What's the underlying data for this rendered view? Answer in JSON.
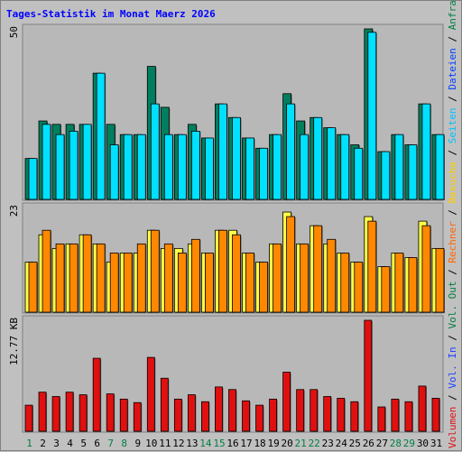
{
  "chart_data": {
    "type": "bar",
    "title": "Tages-Statistik im Monat Maerz 2026",
    "categories": [
      "1",
      "2",
      "3",
      "4",
      "5",
      "6",
      "7",
      "8",
      "9",
      "10",
      "11",
      "12",
      "13",
      "14",
      "15",
      "16",
      "17",
      "18",
      "19",
      "20",
      "21",
      "22",
      "23",
      "24",
      "25",
      "26",
      "27",
      "28",
      "29",
      "30",
      "31"
    ],
    "weekend_days": [
      "1",
      "7",
      "8",
      "14",
      "15",
      "21",
      "22",
      "28",
      "29"
    ],
    "colors": {
      "weekday_label": "#000000",
      "weekend_label": "#007f3f",
      "hits": "#007f5f",
      "files": "#00e0ff",
      "pages": "#ffff44",
      "visits": "#ff8800",
      "kbytes": "#e01010"
    },
    "panels": [
      {
        "id": "top",
        "max_label": "50",
        "ylim": [
          0,
          50
        ],
        "series": [
          {
            "key": "hits",
            "values": [
              12,
              23,
              22,
              22,
              22,
              37,
              22,
              19,
              19,
              39,
              27,
              19,
              22,
              18,
              28,
              24,
              18,
              15,
              19,
              31,
              23,
              24,
              21,
              19,
              16,
              50,
              14,
              19,
              16,
              28,
              19
            ]
          },
          {
            "key": "files",
            "values": [
              12,
              22,
              19,
              20,
              22,
              37,
              16,
              19,
              19,
              28,
              19,
              19,
              20,
              18,
              28,
              24,
              18,
              15,
              19,
              28,
              19,
              24,
              21,
              19,
              15,
              49,
              14,
              19,
              16,
              28,
              19
            ]
          }
        ]
      },
      {
        "id": "middle",
        "max_label": "23",
        "ylim": [
          0,
          23
        ],
        "series": [
          {
            "key": "pages",
            "values": [
              11,
              17,
              14,
              15,
              17,
              15,
              11,
              13,
              13,
              18,
              14,
              14,
              15,
              13,
              18,
              18,
              13,
              11,
              15,
              22,
              15,
              19,
              15,
              13,
              11,
              21,
              10,
              13,
              12,
              20,
              14
            ]
          },
          {
            "key": "visits",
            "values": [
              11,
              18,
              15,
              15,
              17,
              15,
              13,
              13,
              15,
              18,
              15,
              13,
              16,
              13,
              18,
              17,
              13,
              11,
              15,
              21,
              15,
              19,
              16,
              13,
              11,
              20,
              10,
              13,
              12,
              19,
              14
            ]
          }
        ]
      },
      {
        "id": "bottom",
        "max_label": "12.77 KB",
        "ylim": [
          0,
          12.77
        ],
        "series": [
          {
            "key": "kbytes",
            "values": [
              3.0,
              4.5,
              4.0,
              4.5,
              4.2,
              8.4,
              4.3,
              3.7,
              3.3,
              8.5,
              6.1,
              3.7,
              4.2,
              3.4,
              5.1,
              4.8,
              3.5,
              3.0,
              3.7,
              6.8,
              4.8,
              4.8,
              4.0,
              3.8,
              3.4,
              12.77,
              2.8,
              3.7,
              3.4,
              5.2,
              3.8
            ]
          }
        ]
      }
    ],
    "legend": [
      {
        "text": "Volumen",
        "key": "kbytes"
      },
      {
        "text": " / ",
        "key": "sep"
      },
      {
        "text": "Vol. In",
        "key": "kbytes_in"
      },
      {
        "text": " / ",
        "key": "sep"
      },
      {
        "text": "Vol. Out",
        "key": "kbytes_out"
      },
      {
        "text": " / ",
        "key": "sep"
      },
      {
        "text": "Rechner",
        "key": "visits"
      },
      {
        "text": " / ",
        "key": "sep"
      },
      {
        "text": "Besuche",
        "key": "pages"
      },
      {
        "text": " / ",
        "key": "sep"
      },
      {
        "text": "Seiten",
        "key": "files"
      },
      {
        "text": " / ",
        "key": "sep"
      },
      {
        "text": "Dateien",
        "key": "files_b"
      },
      {
        "text": " / ",
        "key": "sep"
      },
      {
        "text": "Anfragen",
        "key": "hits"
      }
    ],
    "legend_colors": {
      "kbytes": "#e01010",
      "kbytes_in": "#2040ff",
      "kbytes_out": "#007f3f",
      "visits": "#ff6600",
      "pages": "#ffcc00",
      "files": "#00c0ff",
      "files_b": "#0040ff",
      "hits": "#007f3f",
      "sep": "#000000"
    }
  }
}
